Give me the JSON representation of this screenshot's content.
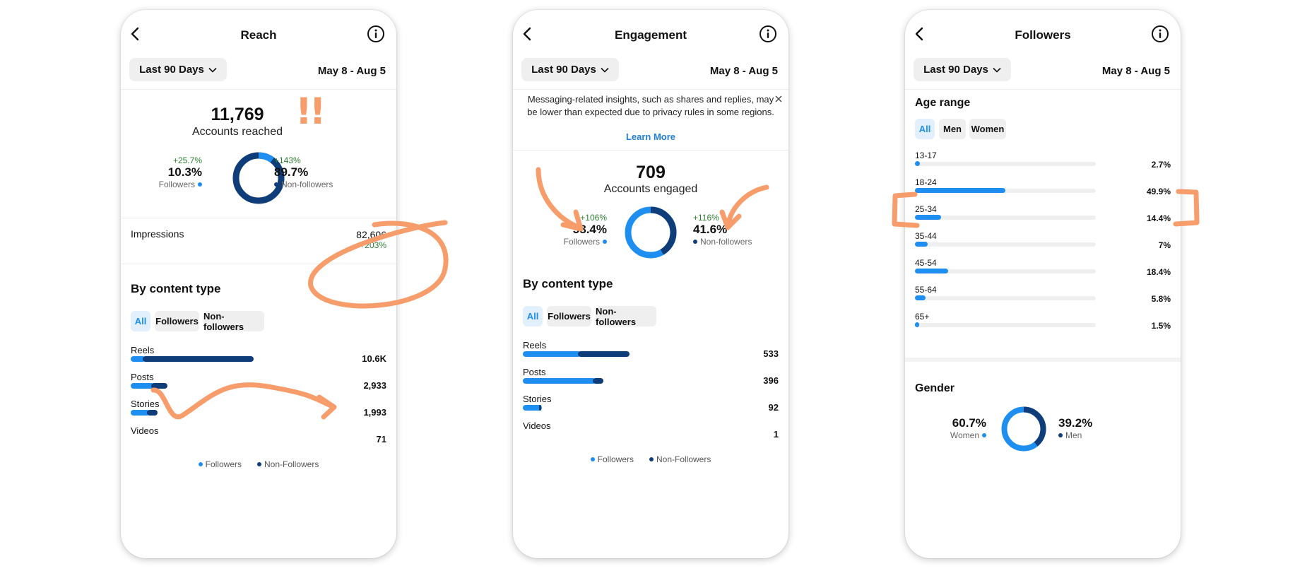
{
  "colors": {
    "followers": "#1f8ef1",
    "non_followers": "#0f3d7a",
    "positive": "#2e7d32",
    "annotation": "#f79d6b",
    "link": "#1f7fd6"
  },
  "icons": {
    "back": "back-arrow-icon",
    "info": "info-icon",
    "dropdown": "chevron-down-icon",
    "close": "close-icon"
  },
  "common": {
    "range_label": "Last 90 Days",
    "date_range": "May 8 - Aug 5"
  },
  "reach": {
    "title": "Reach",
    "total": "11,769",
    "total_label": "Accounts reached",
    "exclaim": "!!",
    "followers": {
      "change": "+25.7%",
      "value": "10.3%",
      "label": "Followers",
      "fraction": 0.103
    },
    "non_followers": {
      "change": "+143%",
      "value": "89.7%",
      "label": "Non-followers",
      "fraction": 0.897
    },
    "impressions": {
      "label": "Impressions",
      "value": "82,606",
      "change": "+203%"
    },
    "content_title": "By content type",
    "filters": [
      "All",
      "Followers",
      "Non-followers"
    ],
    "rows": [
      {
        "label": "Reels",
        "value": "10.6K",
        "followers": 0.06,
        "non_followers": 0.54
      },
      {
        "label": "Posts",
        "value": "2,933",
        "followers": 0.1,
        "non_followers": 0.08
      },
      {
        "label": "Stories",
        "value": "1,993",
        "followers": 0.08,
        "non_followers": 0.05
      },
      {
        "label": "Videos",
        "value": "71",
        "followers": 0.0,
        "non_followers": 0.0
      }
    ],
    "legend": [
      "Followers",
      "Non-Followers"
    ]
  },
  "engagement": {
    "title": "Engagement",
    "notice": "Messaging-related insights, such as shares and replies, may be lower than expected due to privacy rules in some regions.",
    "learn_more": "Learn More",
    "total": "709",
    "total_label": "Accounts engaged",
    "followers": {
      "change": "+106%",
      "value": "58.4%",
      "label": "Followers",
      "fraction": 0.584
    },
    "non_followers": {
      "change": "+116%",
      "value": "41.6%",
      "label": "Non-followers",
      "fraction": 0.416
    },
    "content_title": "By content type",
    "filters": [
      "All",
      "Followers",
      "Non-followers"
    ],
    "rows": [
      {
        "label": "Reels",
        "value": "533",
        "followers": 0.27,
        "non_followers": 0.25
      },
      {
        "label": "Posts",
        "value": "396",
        "followers": 0.34,
        "non_followers": 0.05
      },
      {
        "label": "Stories",
        "value": "92",
        "followers": 0.08,
        "non_followers": 0.01
      },
      {
        "label": "Videos",
        "value": "1",
        "followers": 0.0,
        "non_followers": 0.0
      }
    ],
    "legend": [
      "Followers",
      "Non-Followers"
    ]
  },
  "followers": {
    "title": "Followers",
    "age_title": "Age range",
    "age_filters": [
      "All",
      "Men",
      "Women"
    ],
    "ages": [
      {
        "label": "13-17",
        "value": "2.7%",
        "fraction": 0.027
      },
      {
        "label": "18-24",
        "value": "49.9%",
        "fraction": 0.499
      },
      {
        "label": "25-34",
        "value": "14.4%",
        "fraction": 0.144
      },
      {
        "label": "35-44",
        "value": "7%",
        "fraction": 0.07
      },
      {
        "label": "45-54",
        "value": "18.4%",
        "fraction": 0.184
      },
      {
        "label": "55-64",
        "value": "5.8%",
        "fraction": 0.058
      },
      {
        "label": "65+",
        "value": "1.5%",
        "fraction": 0.015
      }
    ],
    "gender_title": "Gender",
    "women": {
      "value": "60.7%",
      "label": "Women",
      "fraction": 0.607
    },
    "men": {
      "value": "39.2%",
      "label": "Men",
      "fraction": 0.392
    }
  }
}
